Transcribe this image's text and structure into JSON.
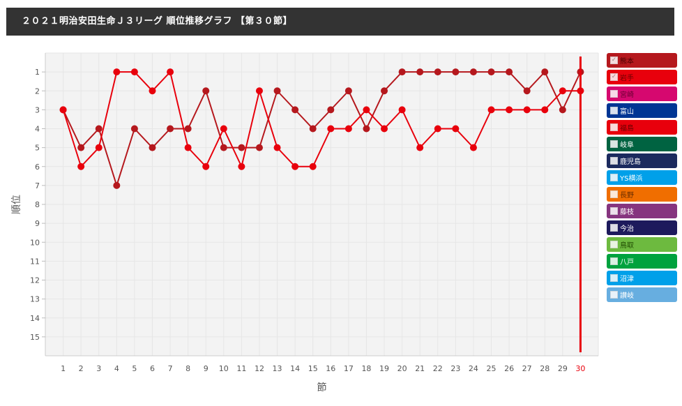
{
  "header": {
    "title": "２０２１明治安田生命Ｊ３リーグ 順位推移グラフ 【第３０節】"
  },
  "colors": {
    "grid": "#e6e6e6",
    "plot_bg": "#f3f3f3",
    "highlight": "#e8000c"
  },
  "chart_data": {
    "type": "line",
    "xlabel": "節",
    "ylabel": "順位",
    "x": [
      1,
      2,
      3,
      4,
      5,
      6,
      7,
      8,
      9,
      10,
      11,
      12,
      13,
      14,
      15,
      16,
      17,
      18,
      19,
      20,
      21,
      22,
      23,
      24,
      25,
      26,
      27,
      28,
      29,
      30
    ],
    "xlim": [
      0,
      31
    ],
    "ylim": [
      16,
      0
    ],
    "y_inverted": true,
    "y_ticks": [
      1,
      2,
      3,
      4,
      5,
      6,
      7,
      8,
      9,
      10,
      11,
      12,
      13,
      14,
      15
    ],
    "grid": true,
    "legend_position": "right",
    "highlight_x": 30,
    "series": [
      {
        "name": "熊本",
        "color": "#b5181d",
        "values": [
          3,
          5,
          4,
          7,
          4,
          5,
          4,
          4,
          2,
          5,
          5,
          5,
          2,
          3,
          4,
          3,
          2,
          4,
          2,
          1,
          1,
          1,
          1,
          1,
          1,
          1,
          2,
          1,
          3,
          1
        ]
      },
      {
        "name": "岩手",
        "color": "#e8000c",
        "values": [
          3,
          6,
          5,
          1,
          1,
          2,
          1,
          5,
          6,
          4,
          6,
          2,
          5,
          6,
          6,
          4,
          4,
          3,
          4,
          3,
          5,
          4,
          4,
          5,
          3,
          3,
          3,
          3,
          2,
          2
        ]
      }
    ]
  },
  "legend": [
    {
      "label": "熊本",
      "color": "#b5181d",
      "checked": true,
      "text_color": "#4a0000"
    },
    {
      "label": "岩手",
      "color": "#e8000c",
      "checked": true,
      "text_color": "#6b0000"
    },
    {
      "label": "宮崎",
      "color": "#d6086f",
      "checked": false,
      "text_color": "#6b0033"
    },
    {
      "label": "富山",
      "color": "#003594",
      "checked": false,
      "text_color": "#ffffff"
    },
    {
      "label": "福島",
      "color": "#e8000c",
      "checked": false,
      "text_color": "#6b0000"
    },
    {
      "label": "岐阜",
      "color": "#006341",
      "checked": false,
      "text_color": "#ffffff"
    },
    {
      "label": "鹿児島",
      "color": "#1b2a5e",
      "checked": false,
      "text_color": "#ffffff"
    },
    {
      "label": "YS横浜",
      "color": "#00a0e9",
      "checked": false,
      "text_color": "#ffffff"
    },
    {
      "label": "長野",
      "color": "#f06e00",
      "checked": false,
      "text_color": "#6b2e00"
    },
    {
      "label": "藤枝",
      "color": "#86347f",
      "checked": false,
      "text_color": "#ffffff"
    },
    {
      "label": "今治",
      "color": "#1d1a5c",
      "checked": false,
      "text_color": "#ffffff"
    },
    {
      "label": "鳥取",
      "color": "#6dba3f",
      "checked": false,
      "text_color": "#1f4a00"
    },
    {
      "label": "八戸",
      "color": "#00a23e",
      "checked": false,
      "text_color": "#ffffff"
    },
    {
      "label": "沼津",
      "color": "#00a0e9",
      "checked": false,
      "text_color": "#ffffff"
    },
    {
      "label": "讃岐",
      "color": "#67aee0",
      "checked": false,
      "text_color": "#ffffff"
    }
  ]
}
